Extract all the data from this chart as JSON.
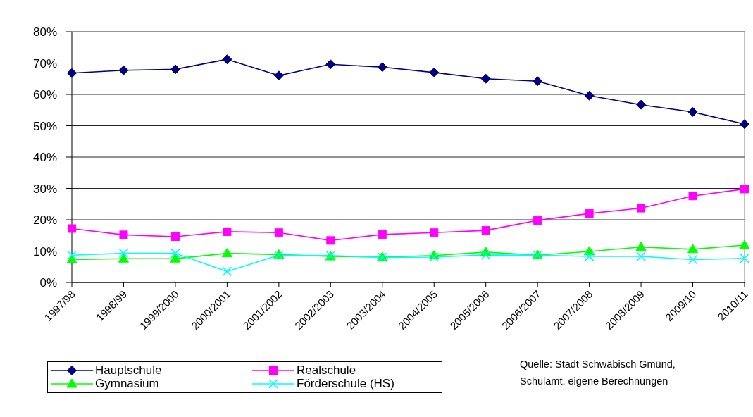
{
  "chart_data": {
    "type": "line",
    "categories": [
      "1997/98",
      "1998/99",
      "1999/2000",
      "2000/2001",
      "2001/2002",
      "2002/2003",
      "2003/2004",
      "2004/2005",
      "2005/2006",
      "2006/2007",
      "2007/2008",
      "2008/2009",
      "2009/10",
      "2010/11"
    ],
    "series": [
      {
        "name": "Hauptschule",
        "color": "#000080",
        "marker": "diamond",
        "values": [
          66.8,
          67.7,
          68.0,
          71.2,
          66.0,
          69.6,
          68.7,
          67.0,
          65.0,
          64.2,
          59.6,
          56.7,
          54.4,
          50.5
        ]
      },
      {
        "name": "Realschule",
        "color": "#ff00ff",
        "marker": "square",
        "values": [
          17.2,
          15.2,
          14.6,
          16.2,
          15.9,
          13.4,
          15.3,
          15.9,
          16.6,
          19.8,
          22.0,
          23.7,
          27.6,
          29.8
        ]
      },
      {
        "name": "Gymnasium",
        "color": "#00ff00",
        "marker": "triangle",
        "values": [
          7.3,
          7.6,
          7.6,
          9.3,
          8.9,
          8.3,
          8.1,
          8.6,
          9.7,
          8.7,
          9.9,
          11.3,
          10.6,
          11.9
        ]
      },
      {
        "name": "Förderschule (HS)",
        "color": "#00ffff",
        "marker": "cross",
        "values": [
          8.7,
          9.3,
          9.3,
          3.5,
          8.7,
          8.6,
          8.0,
          8.1,
          8.8,
          8.7,
          8.3,
          8.3,
          7.3,
          7.7
        ]
      }
    ],
    "ylim": [
      0,
      80
    ],
    "yticks": [
      {
        "value": 0,
        "label": "0%"
      },
      {
        "value": 10,
        "label": "10%"
      },
      {
        "value": 20,
        "label": "20%"
      },
      {
        "value": 30,
        "label": "30%"
      },
      {
        "value": 40,
        "label": "40%"
      },
      {
        "value": 50,
        "label": "50%"
      },
      {
        "value": 60,
        "label": "60%"
      },
      {
        "value": 70,
        "label": "70%"
      },
      {
        "value": 80,
        "label": "80%"
      }
    ],
    "grid": "y",
    "legend": "bottom left",
    "annotations": [
      "Quelle: Stadt Schwäbisch Gmünd,\nSchulamt, eigene Berechnungen"
    ]
  }
}
